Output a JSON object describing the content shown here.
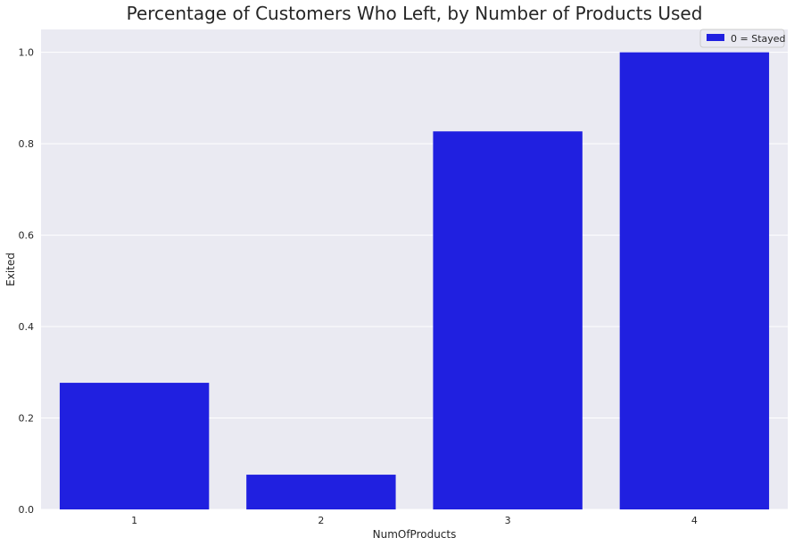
{
  "chart_data": {
    "type": "bar",
    "title": "Percentage of Customers Who Left, by Number of Products Used",
    "xlabel": "NumOfProducts",
    "ylabel": "Exited",
    "categories": [
      "1",
      "2",
      "3",
      "4"
    ],
    "values": [
      0.277,
      0.076,
      0.827,
      1.0
    ],
    "ylim": [
      0,
      1.05
    ],
    "yticks": [
      0.0,
      0.2,
      0.4,
      0.6,
      0.8,
      1.0
    ],
    "ytick_labels": [
      "0.0",
      "0.2",
      "0.4",
      "0.6",
      "0.8",
      "1.0"
    ],
    "grid": true,
    "legend": {
      "placement": "top-right",
      "entries": [
        "0 = Stayed"
      ]
    },
    "colors": {
      "bar": "#2020e0",
      "background": "#eaeaf2",
      "grid": "#ffffff"
    }
  }
}
